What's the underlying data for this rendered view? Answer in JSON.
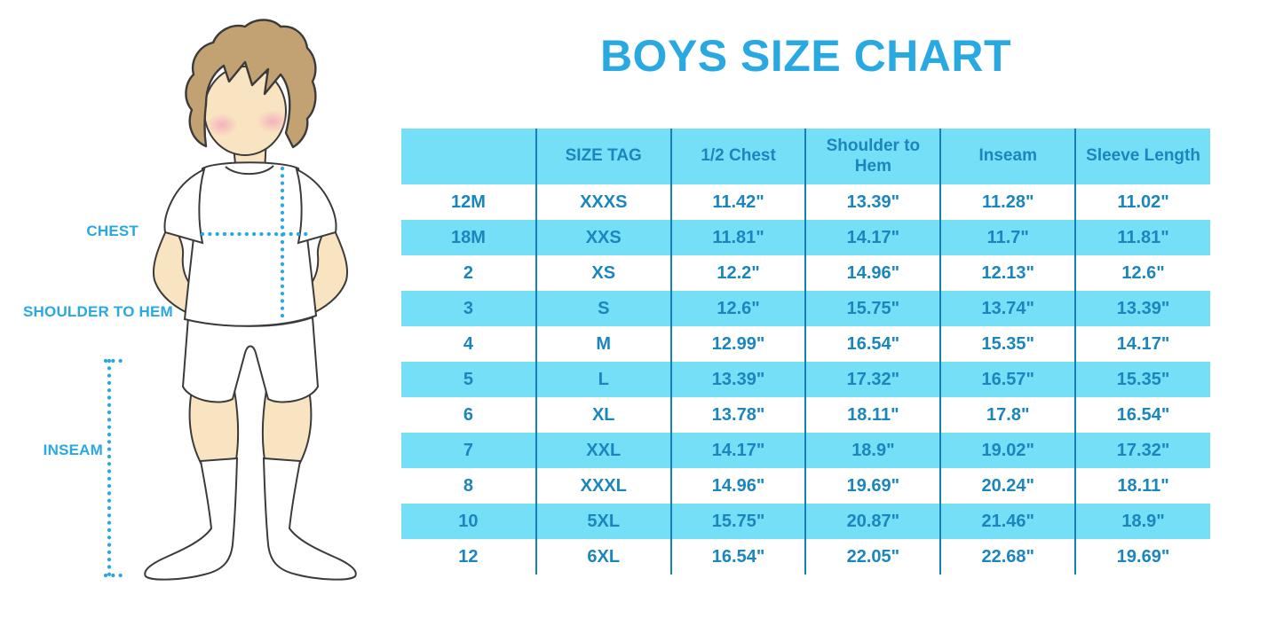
{
  "title": "BOYS SIZE CHART",
  "figure": {
    "labels": [
      "CHEST",
      "SHOULDER TO HEM",
      "INSEAM"
    ]
  },
  "colors": {
    "title_text": "#29A9E1",
    "measurement_labels": "#29A9E1",
    "dotted_lines": "#29A9E1",
    "row_stripe": "#76DFF8",
    "column_divider": "#1580B5",
    "table_text": "#1A86BD",
    "skin": "#F9E4C1",
    "hair": "#C2A173",
    "blush": "#F3A9BC"
  },
  "chart_data": {
    "type": "table",
    "title": "BOYS SIZE CHART",
    "columns": [
      "",
      "SIZE TAG",
      "1/2 Chest",
      "Shoulder to Hem",
      "Inseam",
      "Sleeve Length"
    ],
    "rows": [
      [
        "12M",
        "XXXS",
        "11.42\"",
        "13.39\"",
        "11.28\"",
        "11.02\""
      ],
      [
        "18M",
        "XXS",
        "11.81\"",
        "14.17\"",
        "11.7\"",
        "11.81\""
      ],
      [
        "2",
        "XS",
        "12.2\"",
        "14.96\"",
        "12.13\"",
        "12.6\""
      ],
      [
        "3",
        "S",
        "12.6\"",
        "15.75\"",
        "13.74\"",
        "13.39\""
      ],
      [
        "4",
        "M",
        "12.99\"",
        "16.54\"",
        "15.35\"",
        "14.17\""
      ],
      [
        "5",
        "L",
        "13.39\"",
        "17.32\"",
        "16.57\"",
        "15.35\""
      ],
      [
        "6",
        "XL",
        "13.78\"",
        "18.11\"",
        "17.8\"",
        "16.54\""
      ],
      [
        "7",
        "XXL",
        "14.17\"",
        "18.9\"",
        "19.02\"",
        "17.32\""
      ],
      [
        "8",
        "XXXL",
        "14.96\"",
        "19.69\"",
        "20.24\"",
        "18.11\""
      ],
      [
        "10",
        "5XL",
        "15.75\"",
        "20.87\"",
        "21.46\"",
        "18.9\""
      ],
      [
        "12",
        "6XL",
        "16.54\"",
        "22.05\"",
        "22.68\"",
        "19.69\""
      ]
    ],
    "stripe_pattern": "header and every even data row (18M, 3, 5, 7, 10) filled light blue; others white",
    "legend_position": "none",
    "grid": "vertical column dividers only"
  }
}
